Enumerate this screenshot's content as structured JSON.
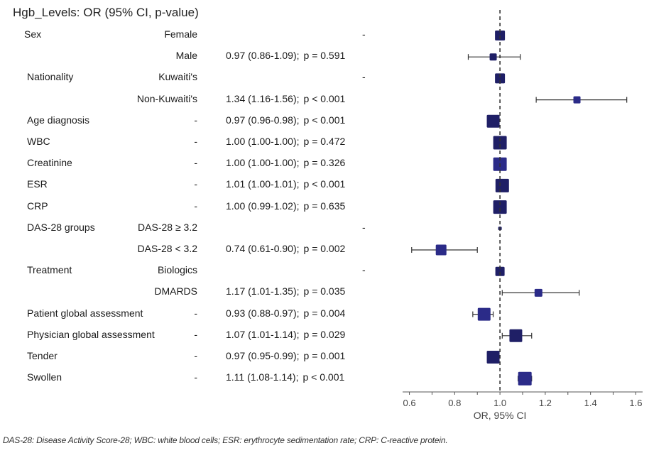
{
  "title": "Hgb_Levels: OR (95% CI, p-value)",
  "caption": "DAS-28: Disease Activity Score-28; WBC: white blood cells; ESR: erythrocyte sedimentation rate; CRP: C-reactive protein.",
  "colors": {
    "marker": "#1f1f66",
    "marker_alt": "#2b2b88",
    "axis": "#555555",
    "ref_line": "#333333"
  },
  "chart_data": {
    "type": "forest",
    "title": "Hgb_Levels: OR (95% CI, p-value)",
    "xlabel": "OR, 95% CI",
    "xlim": [
      0.57,
      1.63
    ],
    "xticks": [
      "0.6",
      "0.8",
      "1.0",
      "1.2",
      "1.4",
      "1.6"
    ],
    "reference_line": 1.0,
    "rows": [
      {
        "variable": "Sex",
        "level": "Female",
        "text": "-",
        "or": 1.0,
        "lo": null,
        "hi": null
      },
      {
        "variable": "",
        "level": "Male",
        "text": "0.97 (0.86-1.09);",
        "ptext": "p = 0.591",
        "or": 0.97,
        "lo": 0.86,
        "hi": 1.09
      },
      {
        "variable": "Nationality",
        "level": "Kuwaiti's",
        "text": "-",
        "or": 1.0,
        "lo": null,
        "hi": null
      },
      {
        "variable": "",
        "level": "Non-Kuwaiti's",
        "text": "1.34 (1.16-1.56);",
        "ptext": "p < 0.001",
        "or": 1.34,
        "lo": 1.16,
        "hi": 1.56
      },
      {
        "variable": "Age diagnosis",
        "level": "-",
        "text": "0.97 (0.96-0.98);",
        "ptext": "p < 0.001",
        "or": 0.97,
        "lo": 0.96,
        "hi": 0.98
      },
      {
        "variable": "WBC",
        "level": "-",
        "text": "1.00 (1.00-1.00);",
        "ptext": "p = 0.472",
        "or": 1.0,
        "lo": 1.0,
        "hi": 1.0
      },
      {
        "variable": "Creatinine",
        "level": "-",
        "text": "1.00 (1.00-1.00);",
        "ptext": "p = 0.326",
        "or": 1.0,
        "lo": 1.0,
        "hi": 1.0
      },
      {
        "variable": "ESR",
        "level": "-",
        "text": "1.01 (1.00-1.01);",
        "ptext": "p < 0.001",
        "or": 1.01,
        "lo": 1.0,
        "hi": 1.01
      },
      {
        "variable": "CRP",
        "level": "-",
        "text": "1.00 (0.99-1.02);",
        "ptext": "p = 0.635",
        "or": 1.0,
        "lo": 0.99,
        "hi": 1.02
      },
      {
        "variable": "DAS-28 groups",
        "level": "DAS-28 ≥ 3.2",
        "text": "-",
        "or": 1.0,
        "lo": null,
        "hi": null
      },
      {
        "variable": "",
        "level": "DAS-28 < 3.2",
        "text": "0.74 (0.61-0.90);",
        "ptext": "p = 0.002",
        "or": 0.74,
        "lo": 0.61,
        "hi": 0.9
      },
      {
        "variable": "Treatment",
        "level": "Biologics",
        "text": "-",
        "or": 1.0,
        "lo": null,
        "hi": null
      },
      {
        "variable": "",
        "level": "DMARDS",
        "text": "1.17 (1.01-1.35);",
        "ptext": "p = 0.035",
        "or": 1.17,
        "lo": 1.01,
        "hi": 1.35
      },
      {
        "variable": "Patient global assessment",
        "level": "-",
        "text": "0.93 (0.88-0.97);",
        "ptext": "p = 0.004",
        "or": 0.93,
        "lo": 0.88,
        "hi": 0.97
      },
      {
        "variable": "Physician global assessment",
        "level": "-",
        "text": "1.07 (1.01-1.14);",
        "ptext": "p = 0.029",
        "or": 1.07,
        "lo": 1.01,
        "hi": 1.14
      },
      {
        "variable": "Tender",
        "level": "-",
        "text": "0.97 (0.95-0.99);",
        "ptext": "p = 0.001",
        "or": 0.97,
        "lo": 0.95,
        "hi": 0.99
      },
      {
        "variable": "Swollen",
        "level": "-",
        "text": "1.11 (1.08-1.14);",
        "ptext": "p < 0.001",
        "or": 1.11,
        "lo": 1.08,
        "hi": 1.14
      }
    ]
  }
}
